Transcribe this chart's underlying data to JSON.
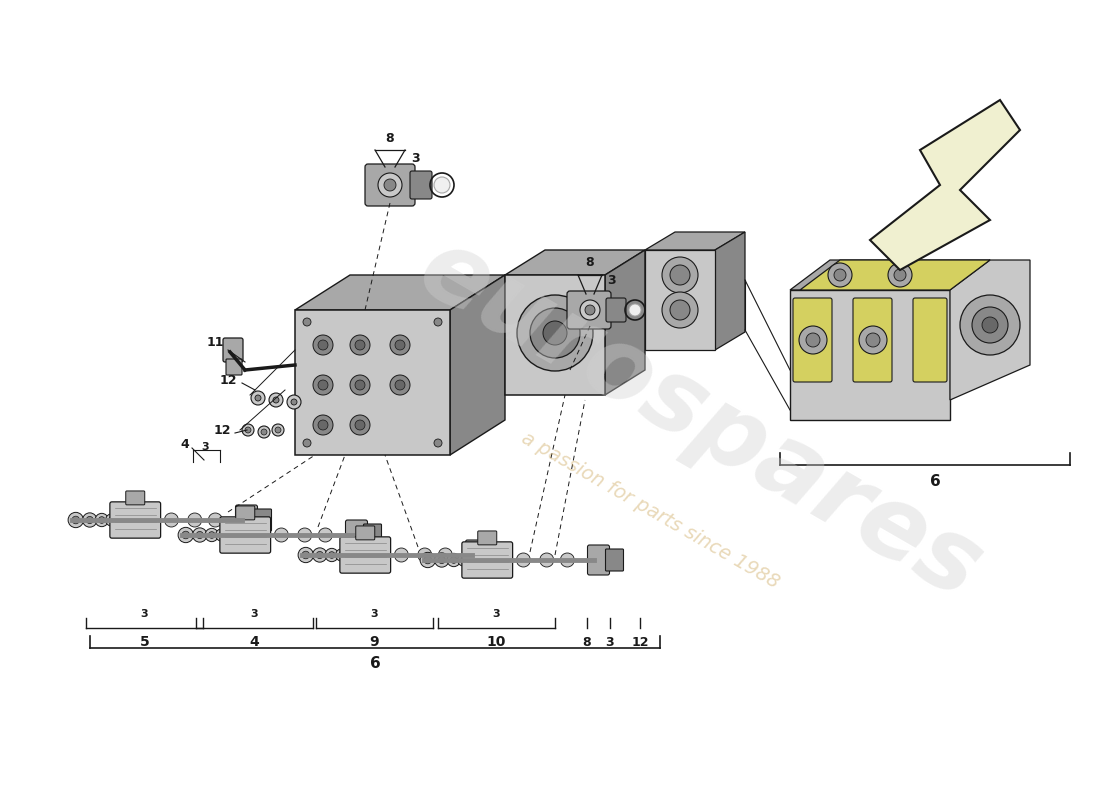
{
  "bg_color": "#ffffff",
  "lc": "#1a1a1a",
  "gc1": "#c8c8c8",
  "gc2": "#a8a8a8",
  "gc3": "#888888",
  "gc4": "#686868",
  "yc": "#d4d060",
  "figsize": [
    11.0,
    8.0
  ],
  "dpi": 100,
  "wm_text": "eurospares",
  "wm_sub": "a passion for parts since 1988",
  "labels": {
    "top_8": "8",
    "top_3": "3",
    "mid_8": "8",
    "mid_3": "3",
    "n11": "11",
    "n12a": "12",
    "n12b": "12",
    "n4": "4",
    "n5": "5",
    "n9": "9",
    "n10": "10",
    "n6a": "6",
    "n6b": "6",
    "b3_1": "3",
    "b3_2": "3",
    "b3_3": "3",
    "b3_4": "3",
    "b8r": "8",
    "b3r": "3",
    "b12r": "12"
  }
}
